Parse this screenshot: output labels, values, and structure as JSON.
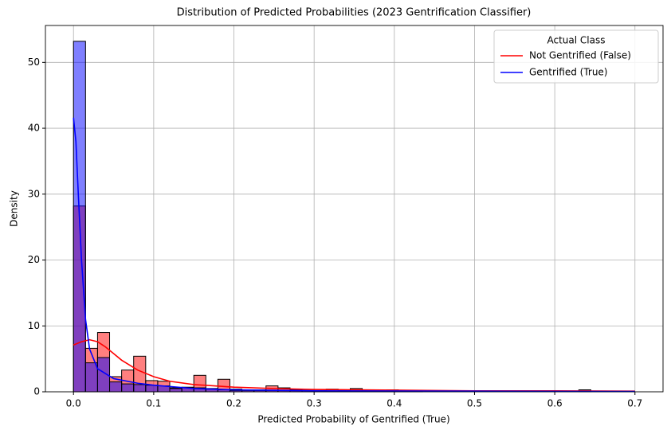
{
  "chart_data": {
    "type": "histogram",
    "title": "Distribution of Predicted Probabilities (2023 Gentrification Classifier)",
    "x_label": "Predicted Probability of Gentrified (True)",
    "y_label": "Density",
    "bins": [
      0,
      0.015,
      0.03,
      0.045,
      0.06,
      0.075,
      0.09,
      0.105,
      0.12,
      0.135,
      0.15,
      0.165,
      0.18,
      0.195,
      0.21,
      0.225,
      0.24,
      0.255,
      0.27,
      0.285,
      0.3,
      0.315,
      0.33,
      0.345,
      0.36,
      0.375,
      0.39,
      0.405,
      0.42,
      0.435,
      0.45,
      0.465,
      0.48,
      0.495,
      0.51,
      0.525,
      0.54,
      0.555,
      0.57,
      0.585,
      0.6,
      0.615,
      0.63,
      0.645,
      0.66,
      0.675,
      0.69,
      0.705
    ],
    "series": [
      {
        "name": "Not Gentrified (False)",
        "color": "red",
        "values": [
          28.2,
          6.6,
          9.0,
          2.3,
          3.3,
          5.4,
          1.7,
          1.6,
          0.6,
          0.7,
          2.5,
          0.5,
          1.9,
          0.4,
          0.3,
          0.3,
          0.9,
          0.6,
          0.3,
          0.2,
          0.2,
          0.4,
          0.2,
          0.5,
          0.2,
          0.1,
          0.3,
          0.1,
          0.1,
          0,
          0,
          0,
          0,
          0,
          0,
          0,
          0,
          0,
          0,
          0,
          0,
          0,
          0.3,
          0,
          0,
          0,
          0
        ],
        "kde": {
          "x": [
            0,
            0.01,
            0.02,
            0.03,
            0.04,
            0.05,
            0.06,
            0.08,
            0.1,
            0.12,
            0.15,
            0.2,
            0.25,
            0.3,
            0.4,
            0.5,
            0.6,
            0.7
          ],
          "values": [
            7.1,
            7.6,
            7.9,
            7.6,
            6.8,
            5.8,
            4.8,
            3.3,
            2.3,
            1.6,
            1.1,
            0.7,
            0.5,
            0.35,
            0.25,
            0.15,
            0.15,
            0.1
          ]
        }
      },
      {
        "name": "Gentrified (True)",
        "color": "blue",
        "values": [
          53.2,
          4.4,
          5.2,
          1.5,
          1.2,
          1.1,
          1.0,
          0.9,
          0.5,
          0.6,
          0.6,
          0.4,
          0.3,
          0.2,
          0.2,
          0.2,
          0.2,
          0.2,
          0.2,
          0.2,
          0.1,
          0.1,
          0,
          0,
          0,
          0,
          0,
          0,
          0,
          0,
          0,
          0,
          0,
          0,
          0,
          0,
          0,
          0,
          0,
          0,
          0,
          0,
          0,
          0,
          0,
          0,
          0
        ],
        "kde": {
          "x": [
            0,
            0.003,
            0.006,
            0.01,
            0.015,
            0.02,
            0.03,
            0.05,
            0.08,
            0.1,
            0.15,
            0.2,
            0.3,
            0.5,
            0.7
          ],
          "values": [
            41.6,
            38,
            30,
            20,
            11,
            6.5,
            3.5,
            2,
            1.3,
            1.0,
            0.5,
            0.3,
            0.15,
            0.1,
            0.05
          ]
        }
      }
    ],
    "legend_title": "Actual Class",
    "legend": "upper right",
    "grid": true,
    "xlim": [
      -0.035,
      0.735
    ],
    "ylim": [
      0,
      55.6
    ],
    "xticks": [
      {
        "value": 0,
        "label": "0.0"
      },
      0.1,
      0.2,
      0.3,
      0.4,
      0.5,
      0.6,
      0.7
    ],
    "yticks": [
      0,
      10,
      20,
      30,
      40,
      50
    ]
  }
}
